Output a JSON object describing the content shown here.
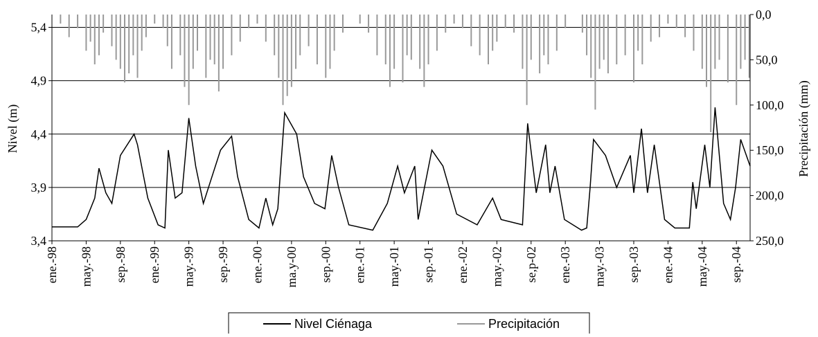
{
  "chart_data": {
    "type": "line",
    "y_label": "Nivel (m)",
    "y2_label": "Precipitación (mm)",
    "xlim": [
      0,
      81.6
    ],
    "xticks": [
      {
        "value": 0,
        "label": "ene.-98"
      },
      {
        "value": 4,
        "label": "may.-98"
      },
      {
        "value": 8,
        "label": "sep.-98"
      },
      {
        "value": 12,
        "label": "ene.-99"
      },
      {
        "value": 16,
        "label": "may.-99"
      },
      {
        "value": 20,
        "label": "sep.-99"
      },
      {
        "value": 24,
        "label": "ene.-00"
      },
      {
        "value": 28,
        "label": "ma.y-00"
      },
      {
        "value": 32,
        "label": "sep.-00"
      },
      {
        "value": 36,
        "label": "ene.-01"
      },
      {
        "value": 40,
        "label": "may.-01"
      },
      {
        "value": 44,
        "label": "sep.-01"
      },
      {
        "value": 48,
        "label": "ene.-02"
      },
      {
        "value": 52,
        "label": "may.-02"
      },
      {
        "value": 56,
        "label": "se,p-02"
      },
      {
        "value": 60,
        "label": "ene.-03"
      },
      {
        "value": 64,
        "label": "may.-03"
      },
      {
        "value": 68,
        "label": "sep.-03"
      },
      {
        "value": 72,
        "label": "ene.-04"
      },
      {
        "value": 76,
        "label": "may.-04"
      },
      {
        "value": 80,
        "label": "sep.-04"
      }
    ],
    "ylim": [
      3.4,
      5.52
    ],
    "yticks": [
      {
        "value": 3.4,
        "label": "3,4"
      },
      {
        "value": 3.9,
        "label": "3,9"
      },
      {
        "value": 4.4,
        "label": "4,4"
      },
      {
        "value": 4.9,
        "label": "4,9"
      },
      {
        "value": 5.4,
        "label": "5,4"
      }
    ],
    "y2lim": [
      250,
      0
    ],
    "y2ticks": [
      {
        "value": 0,
        "label": "0,0"
      },
      {
        "value": 50,
        "label": "50,0"
      },
      {
        "value": 100,
        "label": "100,0"
      },
      {
        "value": 150,
        "label": "150,0"
      },
      {
        "value": 200,
        "label": "200,0"
      },
      {
        "value": 250,
        "label": "250,0"
      }
    ],
    "grid": true,
    "series": [
      {
        "name": "Nivel Ciénaga",
        "color": "#000000",
        "x": [
          0,
          3,
          4,
          5,
          5.5,
          6.3,
          7,
          8,
          9.6,
          10,
          11.2,
          12.4,
          13.2,
          13.6,
          14.4,
          15.2,
          16,
          16.8,
          17.7,
          18.5,
          19.7,
          21,
          21.7,
          23,
          24.2,
          25,
          25.8,
          26.4,
          27.2,
          28.6,
          29.4,
          30.7,
          31.9,
          32.7,
          33.5,
          34.7,
          37.5,
          39.2,
          40.4,
          41.2,
          42.4,
          42.8,
          44.4,
          45.7,
          47.3,
          49.7,
          51.5,
          52.5,
          55,
          55.6,
          56.6,
          57.7,
          58.2,
          58.8,
          59.9,
          61.9,
          62.5,
          62.9,
          63.3,
          64.7,
          66,
          67.6,
          68,
          68.9,
          69.6,
          70.4,
          71.6,
          72.8,
          74.5,
          74.9,
          75.3,
          76.3,
          76.9,
          77.5,
          78.5,
          79.3,
          79.9,
          80.5,
          81.6
        ],
        "values": [
          3.53,
          3.53,
          3.6,
          3.8,
          4.08,
          3.85,
          3.75,
          4.2,
          4.4,
          4.3,
          3.8,
          3.55,
          3.52,
          4.25,
          3.8,
          3.85,
          4.55,
          4.1,
          3.75,
          3.95,
          4.25,
          4.38,
          4.0,
          3.6,
          3.52,
          3.8,
          3.55,
          3.7,
          4.6,
          4.4,
          4.0,
          3.75,
          3.7,
          4.2,
          3.9,
          3.55,
          3.5,
          3.75,
          4.1,
          3.85,
          4.1,
          3.6,
          4.25,
          4.1,
          3.65,
          3.55,
          3.8,
          3.6,
          3.55,
          4.5,
          3.85,
          4.3,
          3.85,
          4.1,
          3.6,
          3.5,
          3.52,
          3.9,
          4.35,
          4.2,
          3.9,
          4.2,
          3.85,
          4.45,
          3.85,
          4.3,
          3.6,
          3.52,
          3.52,
          3.95,
          3.7,
          4.3,
          3.9,
          4.65,
          3.75,
          3.6,
          3.9,
          4.35,
          4.1
        ]
      },
      {
        "name": "Precipitación",
        "color": "#999999",
        "axis": "y2",
        "x": [
          1,
          2,
          3,
          4,
          4.5,
          5,
          5.5,
          6,
          7,
          7.5,
          8,
          8.5,
          9,
          9.5,
          10,
          10.5,
          11,
          12,
          13,
          13.5,
          14,
          15,
          15.5,
          16,
          16.5,
          17,
          18,
          18.5,
          19,
          19.5,
          20,
          21,
          22,
          23,
          24,
          25,
          26,
          26.5,
          27,
          27.5,
          28,
          28.5,
          29,
          30,
          31,
          32,
          32.5,
          33,
          34,
          36,
          37,
          38,
          39,
          39.5,
          40,
          41,
          41.5,
          42,
          43,
          43.5,
          44,
          45,
          46,
          47,
          48,
          49,
          50,
          51,
          51.5,
          52,
          53,
          54,
          55,
          55.5,
          56,
          57,
          57.5,
          58,
          59,
          60,
          62,
          62.5,
          63,
          63.5,
          64,
          64.5,
          65,
          66,
          67,
          68,
          68.5,
          69,
          70,
          71,
          72,
          73,
          74,
          75,
          76,
          76.5,
          77,
          77.5,
          78,
          79,
          80,
          80.5,
          81,
          81.5
        ],
        "values": [
          10,
          25,
          15,
          40,
          30,
          55,
          45,
          20,
          35,
          50,
          60,
          75,
          65,
          45,
          70,
          40,
          25,
          10,
          15,
          35,
          60,
          45,
          80,
          100,
          60,
          40,
          70,
          50,
          55,
          85,
          60,
          45,
          30,
          15,
          10,
          30,
          45,
          70,
          100,
          90,
          80,
          60,
          45,
          35,
          55,
          70,
          60,
          40,
          20,
          10,
          20,
          45,
          55,
          80,
          60,
          75,
          45,
          50,
          60,
          80,
          55,
          40,
          20,
          10,
          15,
          35,
          45,
          55,
          40,
          30,
          15,
          20,
          60,
          100,
          50,
          65,
          45,
          55,
          40,
          15,
          20,
          45,
          70,
          105,
          60,
          50,
          65,
          55,
          45,
          75,
          40,
          55,
          30,
          25,
          10,
          15,
          25,
          40,
          60,
          80,
          130,
          60,
          50,
          75,
          100,
          60,
          50,
          70
        ]
      }
    ]
  }
}
